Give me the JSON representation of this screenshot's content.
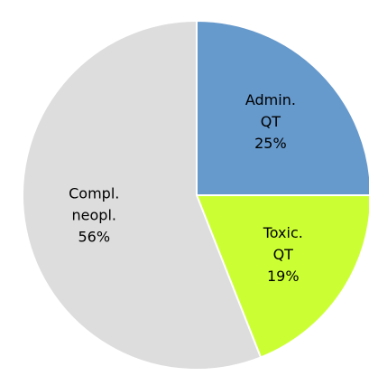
{
  "chart_data": {
    "type": "pie",
    "categories": [
      [
        "Admin.",
        "QT"
      ],
      [
        "Toxic.",
        "QT"
      ],
      [
        "Compl.",
        "neopl."
      ]
    ],
    "values": [
      25,
      19,
      56
    ],
    "value_labels": [
      "25%",
      "19%",
      "56%"
    ],
    "colors": [
      "#6699cc",
      "#ccff33",
      "#dddddd"
    ]
  }
}
